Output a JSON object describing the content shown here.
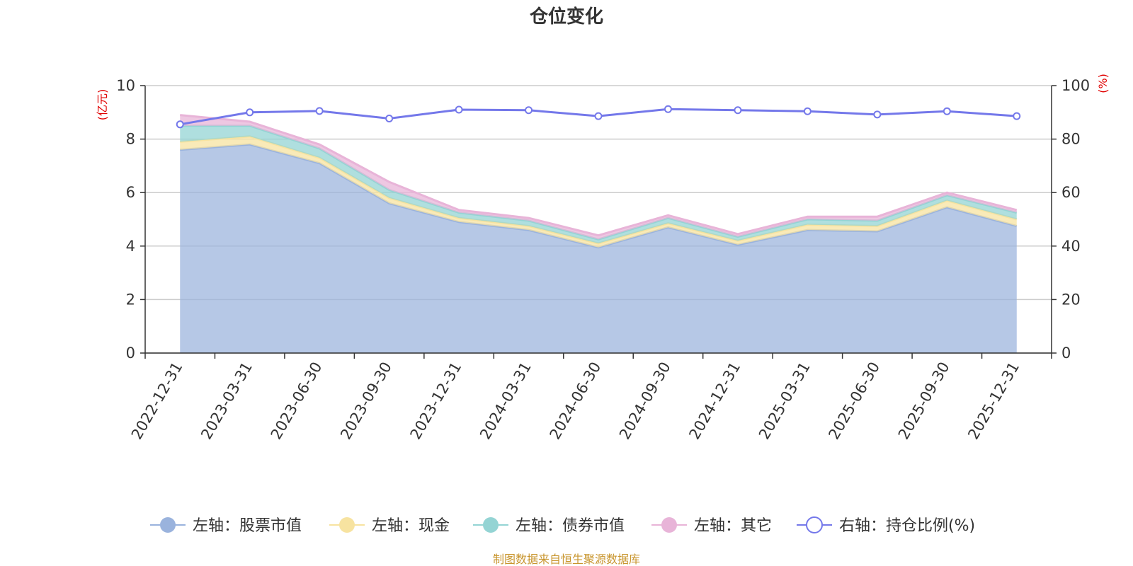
{
  "chart_data": {
    "type": "area",
    "title": "仓位变化",
    "left_axis_unit": "(亿元)",
    "right_axis_unit": "(%)",
    "left_ylim": [
      0,
      10
    ],
    "left_ticks": [
      "0",
      "2",
      "4",
      "6",
      "8",
      "10"
    ],
    "right_ylim": [
      0,
      100
    ],
    "right_ticks": [
      "0",
      "20",
      "40",
      "60",
      "80",
      "100"
    ],
    "categories": [
      "2022-12-31",
      "2023-03-31",
      "2023-06-30",
      "2023-09-30",
      "2023-12-31",
      "2024-03-31",
      "2024-06-30",
      "2024-09-30",
      "2024-12-31",
      "2025-03-31",
      "2025-06-30",
      "2025-09-30",
      "2025-12-31"
    ],
    "stacked_series": [
      {
        "name": "左轴：股票市值",
        "color": "#9ab3dd",
        "values": [
          7.6,
          7.8,
          7.1,
          5.6,
          4.9,
          4.6,
          3.95,
          4.7,
          4.05,
          4.6,
          4.55,
          5.45,
          4.75
        ]
      },
      {
        "name": "左轴：现金",
        "color": "#f7e3a0",
        "values": [
          0.3,
          0.3,
          0.2,
          0.2,
          0.15,
          0.15,
          0.15,
          0.15,
          0.15,
          0.2,
          0.2,
          0.25,
          0.25
        ]
      },
      {
        "name": "左轴：债券市值",
        "color": "#94d4d4",
        "values": [
          0.6,
          0.4,
          0.35,
          0.3,
          0.2,
          0.2,
          0.15,
          0.2,
          0.15,
          0.2,
          0.2,
          0.2,
          0.25
        ]
      },
      {
        "name": "左轴：其它",
        "color": "#e8b4d8",
        "values": [
          0.4,
          0.15,
          0.15,
          0.3,
          0.1,
          0.1,
          0.15,
          0.1,
          0.1,
          0.1,
          0.15,
          0.1,
          0.1
        ]
      }
    ],
    "line_series": {
      "name": "右轴：持仓比例(%)",
      "color": "#7478ea",
      "values": [
        85.5,
        90,
        90.5,
        87.7,
        91,
        90.8,
        88.6,
        91.2,
        90.8,
        90.4,
        89.2,
        90.4,
        88.6
      ]
    },
    "legend_position": "bottom",
    "grid": true,
    "source_note": "制图数据来自恒生聚源数据库"
  }
}
